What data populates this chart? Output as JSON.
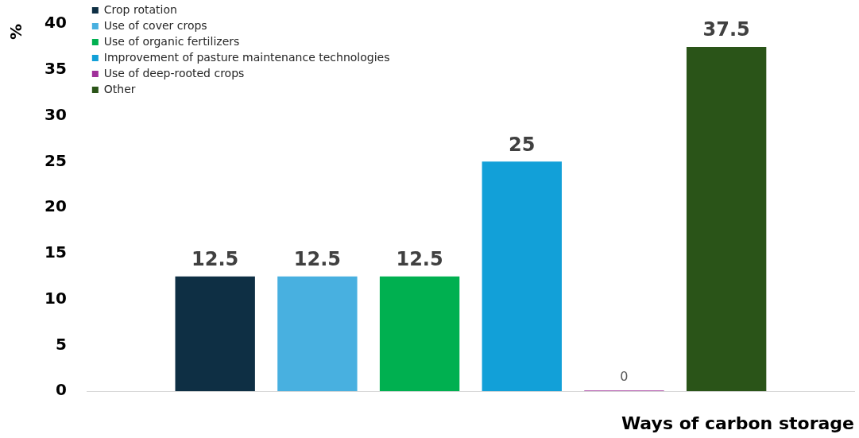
{
  "chart_data": {
    "type": "bar",
    "xlabel": "Ways of carbon storage",
    "ylabel": "%",
    "categories": [
      null
    ],
    "series": [
      {
        "name": "Crop rotation",
        "color": "#0e2f44",
        "values": [
          12.5
        ]
      },
      {
        "name": "Use of cover crops",
        "color": "#48b0e0",
        "values": [
          12.5
        ]
      },
      {
        "name": "Use of organic fertilizers",
        "color": "#00b050",
        "values": [
          12.5
        ]
      },
      {
        "name": "Improvement of pasture maintenance technologies",
        "color": "#12a0d8",
        "values": [
          25
        ]
      },
      {
        "name": "Use of deep-rooted crops",
        "color": "#a0309a",
        "values": [
          0
        ]
      },
      {
        "name": "Other",
        "color": "#2a5418",
        "values": [
          37.5
        ]
      }
    ],
    "ylim": [
      0,
      40
    ],
    "yticks": [
      0,
      5,
      10,
      15,
      20,
      25,
      30,
      35,
      40
    ],
    "grid": false,
    "legend": "top left",
    "data_labels": true
  }
}
